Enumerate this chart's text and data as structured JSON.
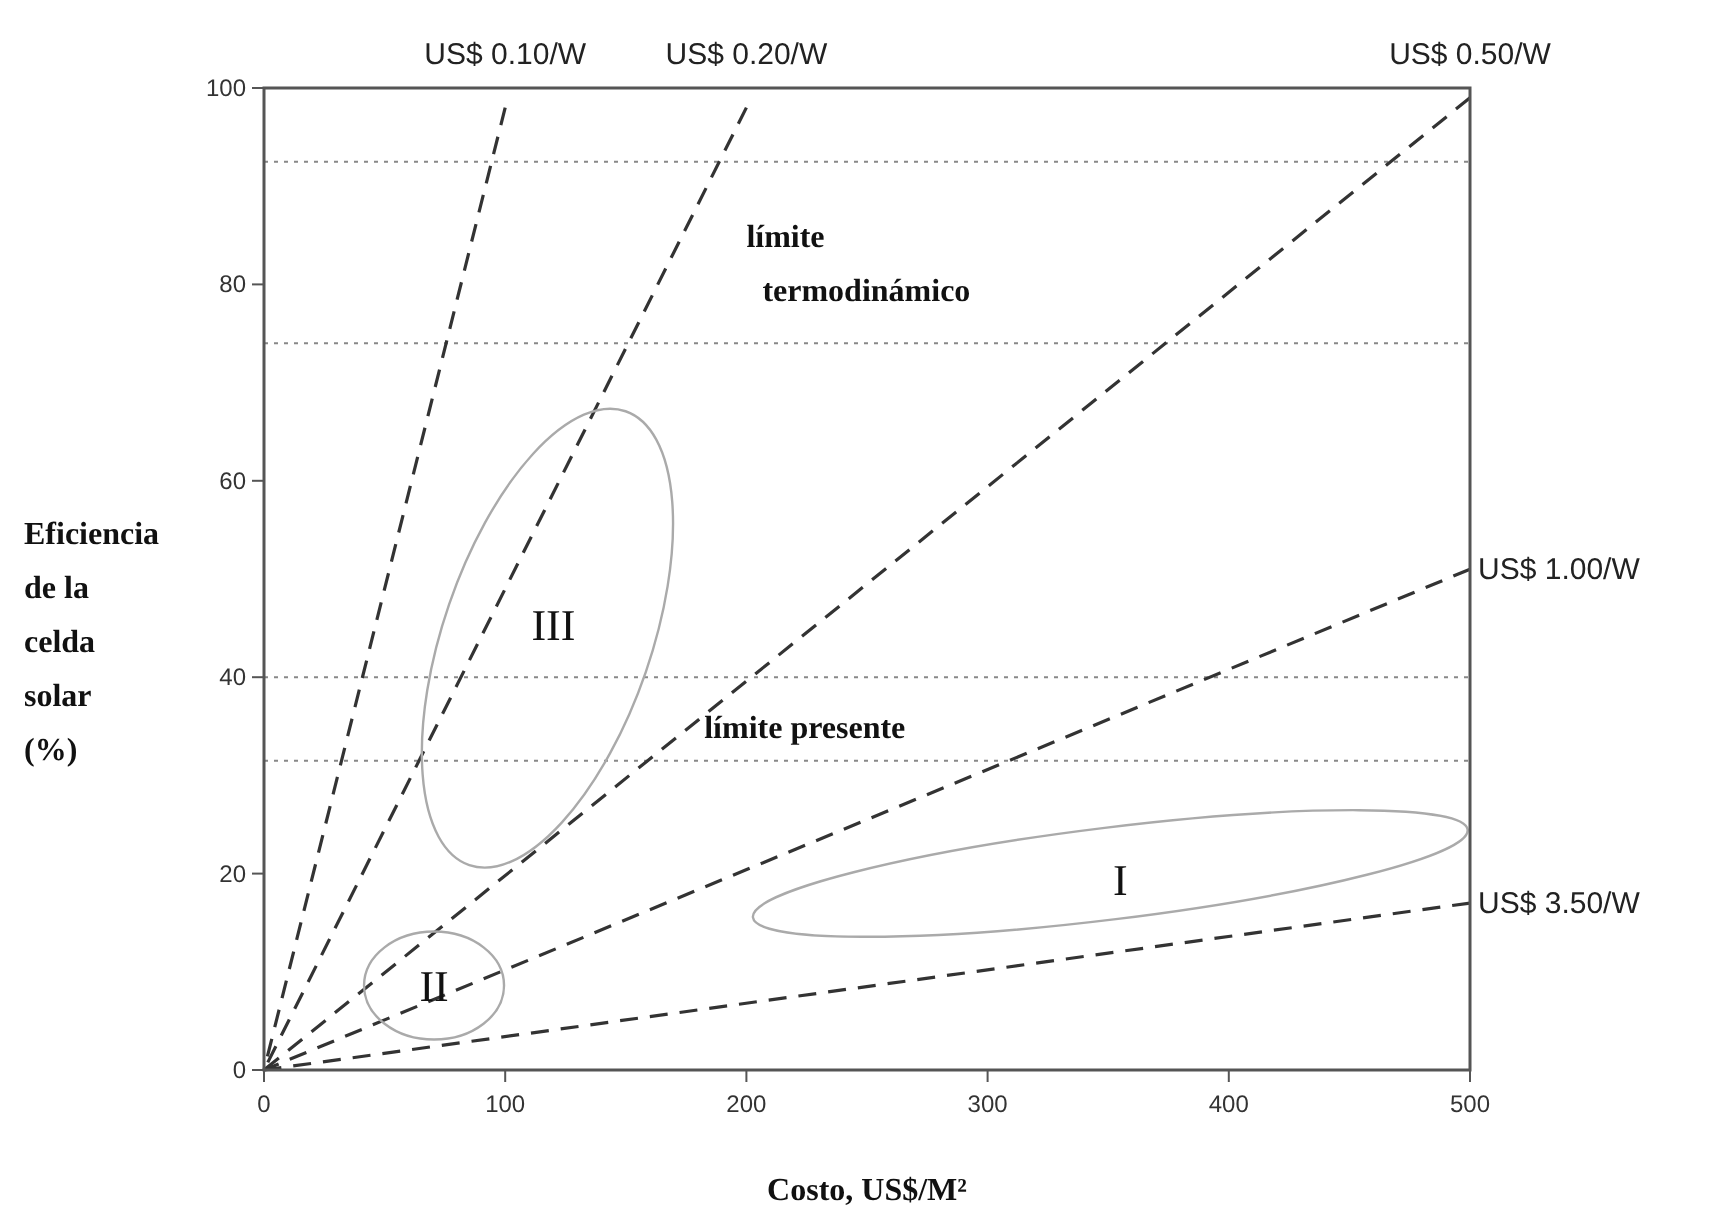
{
  "chart_data": {
    "type": "line",
    "xlabel": "Costo, US$/M²",
    "ylabel": "Eficiencia\nde la\ncelda\nsolar\n(%)",
    "xlim": [
      0,
      500
    ],
    "ylim": [
      0,
      100
    ],
    "xticks": [
      0,
      100,
      200,
      300,
      400,
      500
    ],
    "yticks": [
      0,
      20,
      40,
      60,
      80,
      100
    ],
    "line_style": "dashed",
    "marker": "none",
    "grid": false,
    "series": [
      {
        "name": "US$ 0.10/W",
        "color": "#333333",
        "x": [
          0,
          100
        ],
        "values": [
          0,
          98
        ]
      },
      {
        "name": "US$ 0.20/W",
        "color": "#333333",
        "x": [
          0,
          200
        ],
        "values": [
          0,
          98
        ]
      },
      {
        "name": "US$ 0.50/W",
        "color": "#333333",
        "x": [
          0,
          500
        ],
        "values": [
          0,
          99
        ]
      },
      {
        "name": "US$ 1.00/W",
        "color": "#333333",
        "x": [
          0,
          500
        ],
        "values": [
          0,
          51
        ]
      },
      {
        "name": "US$ 3.50/W",
        "color": "#333333",
        "x": [
          0,
          500
        ],
        "values": [
          0,
          17
        ]
      }
    ],
    "ref_lines": [
      {
        "axis": "y",
        "value": 92.5,
        "line_style": "dotted",
        "color": "#888888"
      },
      {
        "axis": "y",
        "value": 74,
        "line_style": "dotted",
        "color": "#888888"
      },
      {
        "axis": "y",
        "value": 40,
        "line_style": "dotted",
        "color": "#888888"
      },
      {
        "axis": "y",
        "value": 31.5,
        "line_style": "dotted",
        "color": "#888888"
      }
    ],
    "annotations": [
      "límite\ntermodinámico",
      "límite presente",
      "I",
      "II",
      "III"
    ]
  }
}
